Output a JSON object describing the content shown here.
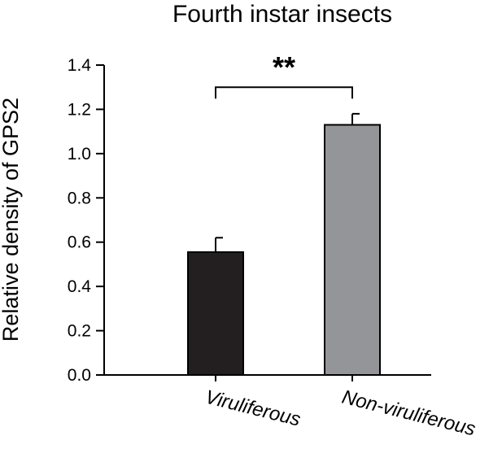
{
  "chart_data": {
    "type": "bar",
    "title": "Fourth instar insects",
    "xlabel": "",
    "ylabel": "Relative density of GPS2",
    "categories": [
      "Viruliferous",
      "Non-viruliferous"
    ],
    "values": [
      0.555,
      1.13
    ],
    "errors": [
      0.065,
      0.05
    ],
    "colors": [
      "#231f20",
      "#939598"
    ],
    "ylim": [
      0,
      1.4
    ],
    "yticks": [
      "0.0",
      "0.2",
      "0.4",
      "0.6",
      "0.8",
      "1.0",
      "1.2",
      "1.4"
    ],
    "grid": false,
    "legend": "none",
    "significance": {
      "label": "**",
      "between": [
        0,
        1
      ]
    }
  }
}
